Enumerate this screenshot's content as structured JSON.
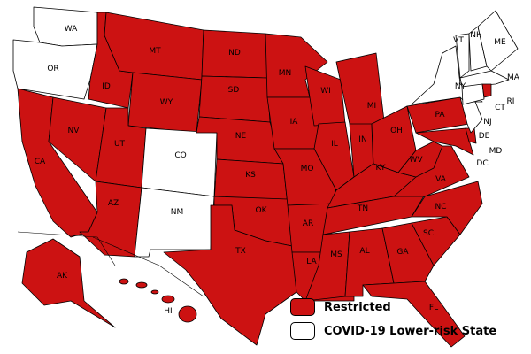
{
  "colors": {
    "restricted": "#CC1212",
    "lower_risk": "#FFFFFF"
  },
  "legend": [
    {
      "label": "Restricted",
      "status": "restricted"
    },
    {
      "label": "COVID-19 Lower-risk State",
      "status": "lower_risk"
    }
  ],
  "states": [
    {
      "abbr": "WA",
      "status": "lower_risk"
    },
    {
      "abbr": "OR",
      "status": "lower_risk"
    },
    {
      "abbr": "CA",
      "status": "restricted"
    },
    {
      "abbr": "NV",
      "status": "restricted"
    },
    {
      "abbr": "ID",
      "status": "restricted"
    },
    {
      "abbr": "MT",
      "status": "restricted"
    },
    {
      "abbr": "WY",
      "status": "restricted"
    },
    {
      "abbr": "UT",
      "status": "restricted"
    },
    {
      "abbr": "CO",
      "status": "lower_risk"
    },
    {
      "abbr": "AZ",
      "status": "restricted"
    },
    {
      "abbr": "NM",
      "status": "lower_risk"
    },
    {
      "abbr": "ND",
      "status": "restricted"
    },
    {
      "abbr": "SD",
      "status": "restricted"
    },
    {
      "abbr": "NE",
      "status": "restricted"
    },
    {
      "abbr": "KS",
      "status": "restricted"
    },
    {
      "abbr": "OK",
      "status": "restricted"
    },
    {
      "abbr": "TX",
      "status": "restricted"
    },
    {
      "abbr": "MN",
      "status": "restricted"
    },
    {
      "abbr": "IA",
      "status": "restricted"
    },
    {
      "abbr": "MO",
      "status": "restricted"
    },
    {
      "abbr": "AR",
      "status": "restricted"
    },
    {
      "abbr": "LA",
      "status": "restricted"
    },
    {
      "abbr": "WI",
      "status": "restricted"
    },
    {
      "abbr": "IL",
      "status": "restricted"
    },
    {
      "abbr": "MI",
      "status": "restricted"
    },
    {
      "abbr": "IN",
      "status": "restricted"
    },
    {
      "abbr": "OH",
      "status": "restricted"
    },
    {
      "abbr": "KY",
      "status": "restricted"
    },
    {
      "abbr": "TN",
      "status": "restricted"
    },
    {
      "abbr": "MS",
      "status": "restricted"
    },
    {
      "abbr": "AL",
      "status": "restricted"
    },
    {
      "abbr": "GA",
      "status": "restricted"
    },
    {
      "abbr": "FL",
      "status": "restricted"
    },
    {
      "abbr": "SC",
      "status": "restricted"
    },
    {
      "abbr": "NC",
      "status": "restricted"
    },
    {
      "abbr": "VA",
      "status": "restricted"
    },
    {
      "abbr": "WV",
      "status": "restricted"
    },
    {
      "abbr": "PA",
      "status": "restricted"
    },
    {
      "abbr": "MD",
      "status": "restricted"
    },
    {
      "abbr": "DE",
      "status": "restricted"
    },
    {
      "abbr": "DC",
      "status": "restricted"
    },
    {
      "abbr": "NJ",
      "status": "lower_risk"
    },
    {
      "abbr": "NY",
      "status": "lower_risk"
    },
    {
      "abbr": "VT",
      "status": "lower_risk"
    },
    {
      "abbr": "NH",
      "status": "lower_risk"
    },
    {
      "abbr": "ME",
      "status": "lower_risk"
    },
    {
      "abbr": "MA",
      "status": "lower_risk"
    },
    {
      "abbr": "CT",
      "status": "lower_risk"
    },
    {
      "abbr": "RI",
      "status": "restricted"
    },
    {
      "abbr": "AK",
      "status": "restricted"
    },
    {
      "abbr": "HI",
      "status": "restricted"
    }
  ]
}
